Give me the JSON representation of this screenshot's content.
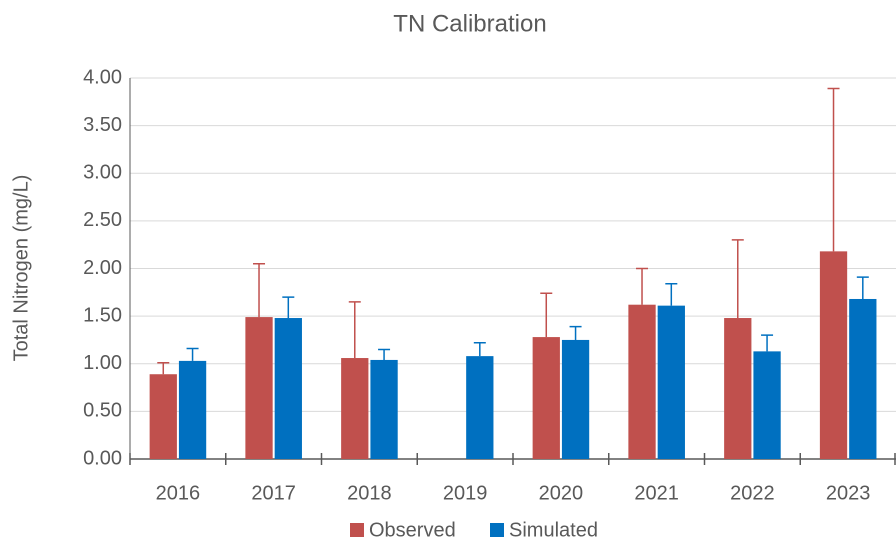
{
  "chart_data": {
    "type": "bar",
    "title": "TN Calibration",
    "y_label": "Total Nitrogen (mg/L)",
    "categories": [
      "2016",
      "2017",
      "2018",
      "2019",
      "2020",
      "2021",
      "2022",
      "2023"
    ],
    "series": [
      {
        "name": "Observed",
        "color": "#c0504d",
        "values": [
          0.89,
          1.49,
          1.06,
          null,
          1.28,
          1.62,
          1.48,
          2.18
        ],
        "errors": [
          0.12,
          0.56,
          0.59,
          null,
          0.46,
          0.38,
          0.82,
          1.71
        ]
      },
      {
        "name": "Simulated",
        "color": "#0070c0",
        "values": [
          1.03,
          1.48,
          1.04,
          1.08,
          1.25,
          1.61,
          1.13,
          1.68
        ],
        "errors": [
          0.13,
          0.22,
          0.11,
          0.14,
          0.14,
          0.23,
          0.17,
          0.23
        ]
      }
    ],
    "ylim": [
      0,
      4
    ],
    "yticks": [
      {
        "value": 0,
        "label": "0.00"
      },
      {
        "value": 0.5,
        "label": "0.50"
      },
      {
        "value": 1,
        "label": "1.00"
      },
      {
        "value": 1.5,
        "label": "1.50"
      },
      {
        "value": 2,
        "label": "2.00"
      },
      {
        "value": 2.5,
        "label": "2.50"
      },
      {
        "value": 3,
        "label": "3.00"
      },
      {
        "value": 3.5,
        "label": "3.50"
      },
      {
        "value": 4,
        "label": "4.00"
      }
    ],
    "grid": true,
    "legend": "bottom"
  }
}
